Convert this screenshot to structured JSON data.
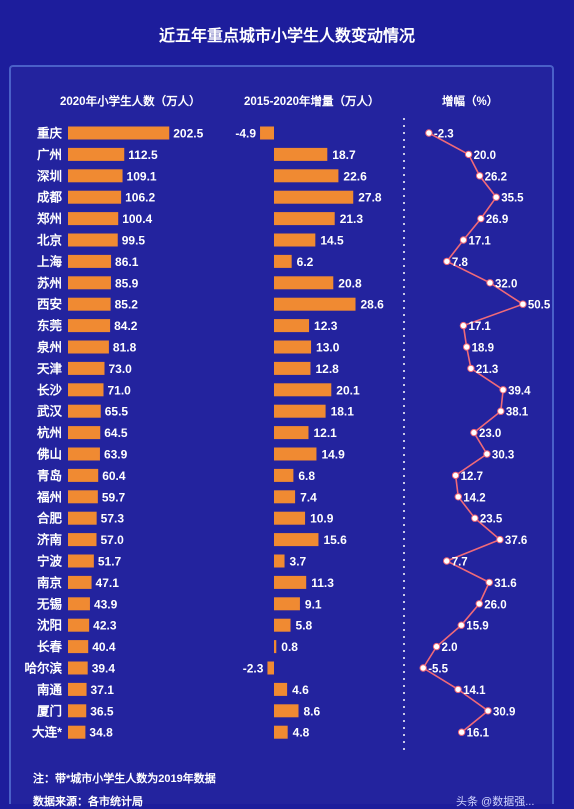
{
  "title": "近五年重点城市小学生人数变动情况",
  "headers": {
    "students": "2020年小学生人数（万人）",
    "increase": "2015-2020年增量（万人）",
    "growth": "增幅（%）"
  },
  "chart_data": {
    "type": "bar",
    "title": "近五年重点城市小学生人数变动情况",
    "categories": [
      "重庆",
      "广州",
      "深圳",
      "成都",
      "郑州",
      "北京",
      "上海",
      "苏州",
      "西安",
      "东莞",
      "泉州",
      "天津",
      "长沙",
      "武汉",
      "杭州",
      "佛山",
      "青岛",
      "福州",
      "合肥",
      "济南",
      "宁波",
      "南京",
      "无锡",
      "沈阳",
      "长春",
      "哈尔滨",
      "南通",
      "厦门",
      "大连*"
    ],
    "series": [
      {
        "name": "2020年小学生人数（万人）",
        "type": "bar",
        "values": [
          202.5,
          112.5,
          109.1,
          106.2,
          100.4,
          99.5,
          86.1,
          85.9,
          85.2,
          84.2,
          81.8,
          73.0,
          71.0,
          65.5,
          64.5,
          63.9,
          60.4,
          59.7,
          57.3,
          57.0,
          51.7,
          47.1,
          43.9,
          42.3,
          40.4,
          39.4,
          37.1,
          36.5,
          34.8
        ]
      },
      {
        "name": "2015-2020年增量（万人）",
        "type": "bar",
        "values": [
          -4.9,
          18.7,
          22.6,
          27.8,
          21.3,
          14.5,
          6.2,
          20.8,
          28.6,
          12.3,
          13.0,
          12.8,
          20.1,
          18.1,
          12.1,
          14.9,
          6.8,
          7.4,
          10.9,
          15.6,
          3.7,
          11.3,
          9.1,
          5.8,
          0.8,
          -2.3,
          4.6,
          8.6,
          4.8
        ]
      },
      {
        "name": "增幅（%）",
        "type": "line",
        "values": [
          -2.3,
          20.0,
          26.2,
          35.5,
          26.9,
          17.1,
          7.8,
          32.0,
          50.5,
          17.1,
          18.9,
          21.3,
          39.4,
          38.1,
          23.0,
          30.3,
          12.7,
          14.2,
          23.5,
          37.6,
          7.7,
          31.6,
          26.0,
          15.9,
          2.0,
          -5.5,
          14.1,
          30.9,
          16.1
        ]
      }
    ],
    "value_labels": {
      "students": [
        "202.5",
        "112.5",
        "109.1",
        "106.2",
        "100.4",
        "99.5",
        "86.1",
        "85.9",
        "85.2",
        "84.2",
        "81.8",
        "73.0",
        "71.0",
        "65.5",
        "64.5",
        "63.9",
        "60.4",
        "59.7",
        "57.3",
        "57.0",
        "51.7",
        "47.1",
        "43.9",
        "42.3",
        "40.4",
        "39.4",
        "37.1",
        "36.5",
        "34.8"
      ],
      "increase": [
        "-4.9",
        "18.7",
        "22.6",
        "27.8",
        "21.3",
        "14.5",
        "6.2",
        "20.8",
        "28.6",
        "12.3",
        "13.0",
        "12.8",
        "20.1",
        "18.1",
        "12.1",
        "14.9",
        "6.8",
        "7.4",
        "10.9",
        "15.6",
        "3.7",
        "11.3",
        "9.1",
        "5.8",
        "0.8",
        "-2.3",
        "4.6",
        "8.6",
        "4.8"
      ],
      "growth": [
        "-2.3",
        "20.0",
        "26.2",
        "35.5",
        "26.9",
        "17.1",
        "7.8",
        "32.0",
        "50.5",
        "17.1",
        "18.9",
        "21.3",
        "39.4",
        "38.1",
        "23.0",
        "30.3",
        "12.7",
        "14.2",
        "23.5",
        "37.6",
        "7.7",
        "31.6",
        "26.0",
        "15.9",
        "2.0",
        "-5.5",
        "14.1",
        "30.9",
        "16.1"
      ]
    },
    "grid": false
  },
  "colors": {
    "background": "#1d1d9c",
    "bar": "#f08a32",
    "line": "#f06a78",
    "marker_fill": "#ffffff",
    "divider": "#ffffff"
  },
  "footer": {
    "note": "注：带*城市小学生人数为2019年数据",
    "source": "数据来源：各市统计局",
    "watermark": "头条 @数据强..."
  }
}
